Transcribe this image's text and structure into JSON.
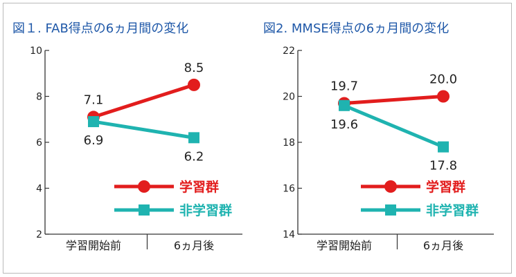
{
  "colors": {
    "title": "#1f58a8",
    "group_study": "#e21d1d",
    "group_nonstudy": "#1fb3b0",
    "axis": "#333333",
    "text": "#222222"
  },
  "chart_data": [
    {
      "type": "line",
      "title": "図１. FAB得点の6ヵ月間の変化",
      "categories": [
        "学習開始前",
        "6ヵ月後"
      ],
      "ylim": [
        2,
        10
      ],
      "yticks": [
        "2",
        "4",
        "6",
        "8",
        "10"
      ],
      "series": [
        {
          "name": "学習群",
          "marker": "circle",
          "values": [
            7.1,
            8.5
          ],
          "labels": [
            "7.1",
            "8.5"
          ],
          "label_pos": [
            "above",
            "above"
          ]
        },
        {
          "name": "非学習群",
          "marker": "square",
          "values": [
            6.9,
            6.2
          ],
          "labels": [
            "6.9",
            "6.2"
          ],
          "label_pos": [
            "below",
            "below"
          ]
        }
      ]
    },
    {
      "type": "line",
      "title": "図2. MMSE得点の6ヵ月間の変化",
      "categories": [
        "学習開始前",
        "6ヵ月後"
      ],
      "ylim": [
        14,
        22
      ],
      "yticks": [
        "14",
        "16",
        "18",
        "20",
        "22"
      ],
      "series": [
        {
          "name": "学習群",
          "marker": "circle",
          "values": [
            19.7,
            20.0
          ],
          "labels": [
            "19.7",
            "20.0"
          ],
          "label_pos": [
            "above",
            "above"
          ]
        },
        {
          "name": "非学習群",
          "marker": "square",
          "values": [
            19.6,
            17.8
          ],
          "labels": [
            "19.6",
            "17.8"
          ],
          "label_pos": [
            "below",
            "below"
          ]
        }
      ]
    }
  ]
}
